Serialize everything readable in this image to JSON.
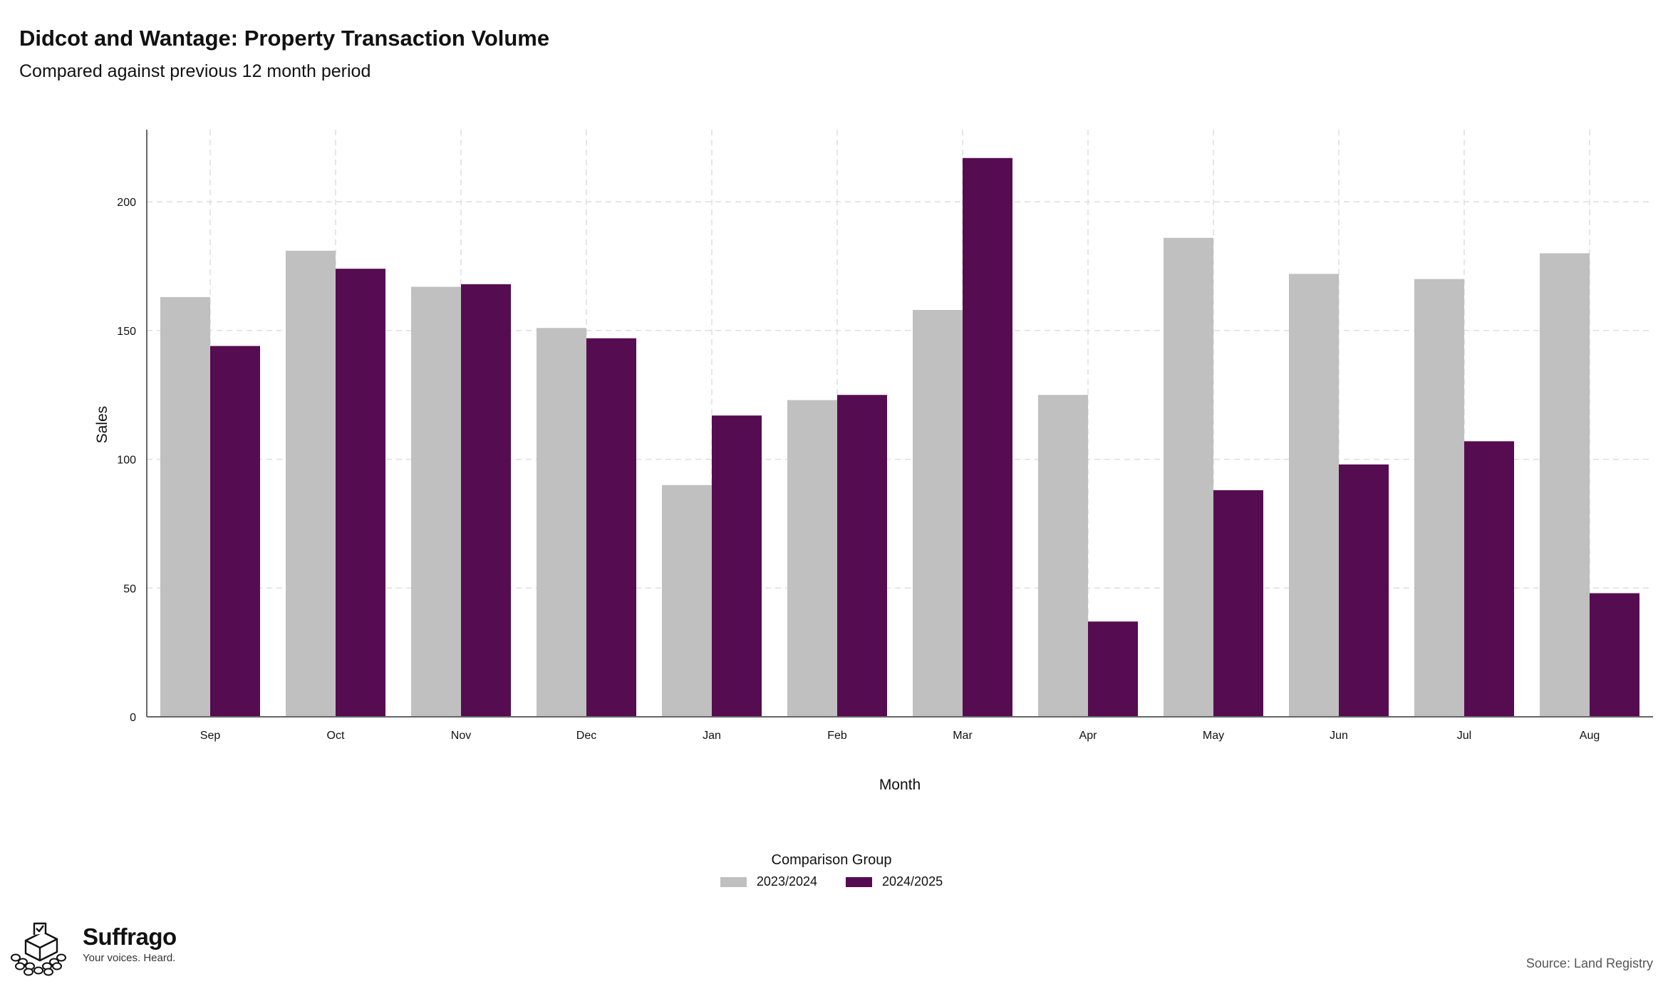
{
  "chart_data": {
    "type": "bar",
    "title": "Didcot and Wantage: Property Transaction Volume",
    "subtitle": "Compared against previous 12 month period",
    "xlabel": "Month",
    "ylabel": "Sales",
    "ylim": [
      0,
      228
    ],
    "yticks": [
      0,
      50,
      100,
      150,
      200
    ],
    "grid": true,
    "legend_position": "bottom",
    "legend_title": "Comparison Group",
    "categories": [
      "Sep",
      "Oct",
      "Nov",
      "Dec",
      "Jan",
      "Feb",
      "Mar",
      "Apr",
      "May",
      "Jun",
      "Jul",
      "Aug"
    ],
    "series": [
      {
        "name": "2023/2024",
        "color": "#c0c0c0",
        "values": [
          163,
          181,
          167,
          151,
          90,
          123,
          158,
          125,
          186,
          172,
          170,
          180
        ]
      },
      {
        "name": "2024/2025",
        "color": "#560c50",
        "values": [
          144,
          174,
          168,
          147,
          117,
          125,
          217,
          37,
          88,
          98,
          107,
          48
        ]
      }
    ]
  },
  "branding": {
    "name": "Suffrago",
    "tagline": "Your voices. Heard.",
    "logo_icon": "ballot-box-icon"
  },
  "source_note": "Source: Land Registry"
}
